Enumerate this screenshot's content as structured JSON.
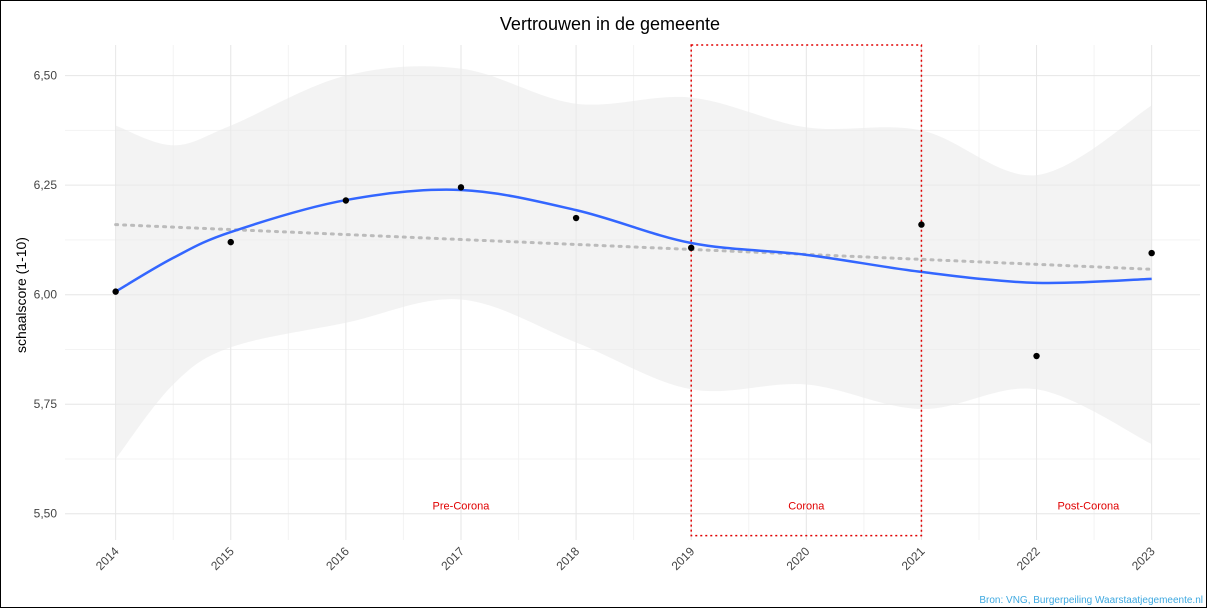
{
  "chart_data": {
    "type": "scatter",
    "title": "Vertrouwen in de gemeente",
    "y_label": "schaalscore (1-10)",
    "source": "Bron: VNG, Burgerpeiling Waarstaatjegemeente.nl",
    "xlim": [
      2013.56,
      2023.42
    ],
    "xticks": [
      2014,
      2015,
      2016,
      2017,
      2018,
      2019,
      2020,
      2021,
      2022,
      2023
    ],
    "ylim": [
      5.44,
      6.57
    ],
    "yticks": [
      {
        "value": 5.5,
        "label": "5,50"
      },
      {
        "value": 5.75,
        "label": "5,75"
      },
      {
        "value": 6,
        "label": "6,00"
      },
      {
        "value": 6.25,
        "label": "6,25"
      },
      {
        "value": 6.5,
        "label": "6,50"
      }
    ],
    "grid": true,
    "points": {
      "color": "#000000",
      "x": [
        2014,
        2015,
        2016,
        2017,
        2018,
        2019,
        2021,
        2022,
        2023
      ],
      "y": [
        6.007,
        6.12,
        6.215,
        6.245,
        6.175,
        6.107,
        6.16,
        5.86,
        6.095
      ]
    },
    "smooth": {
      "color": "#3366ff",
      "band_color": "#ebebeb",
      "x": [
        2014,
        2014.5,
        2015,
        2016,
        2017,
        2018,
        2019,
        2020,
        2021,
        2022,
        2023
      ],
      "values": [
        6.007,
        6.084,
        6.143,
        6.216,
        6.239,
        6.193,
        6.118,
        6.091,
        6.052,
        6.027,
        6.036
      ],
      "upper": [
        6.386,
        6.341,
        6.386,
        6.5,
        6.516,
        6.436,
        6.45,
        6.382,
        6.375,
        6.273,
        6.432
      ],
      "lower": [
        5.625,
        5.795,
        5.88,
        5.936,
        5.989,
        5.891,
        5.784,
        5.795,
        5.739,
        5.784,
        5.659
      ]
    },
    "trend": {
      "color": "#bbbbbb",
      "x": [
        2014,
        2023
      ],
      "values": [
        6.16,
        6.058
      ]
    },
    "highlight": {
      "color": "#e00000",
      "xlim": [
        2019,
        2021
      ],
      "ylim": [
        5.45,
        6.57
      ]
    },
    "annotations": [
      {
        "text": "Pre-Corona",
        "x": 2017,
        "y": 5.51
      },
      {
        "text": "Corona",
        "x": 2020,
        "y": 5.51
      },
      {
        "text": "Post-Corona",
        "x": 2022.45,
        "y": 5.51
      }
    ]
  }
}
